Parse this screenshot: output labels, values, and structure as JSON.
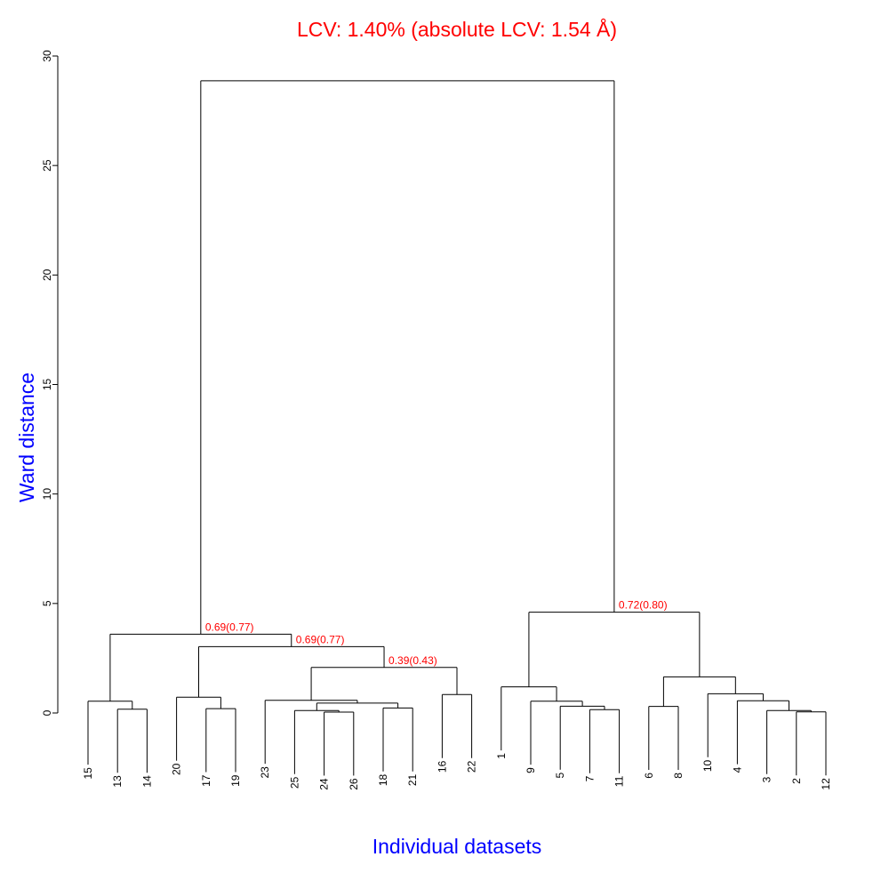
{
  "chart_data": {
    "type": "dendrogram",
    "title": "LCV: 1.40% (absolute LCV: 1.54 Å)",
    "xlabel": "Individual datasets",
    "ylabel": "Ward distance",
    "ylim": [
      0,
      30
    ],
    "yticks": [
      0,
      5,
      10,
      15,
      20,
      25,
      30
    ],
    "hang": 2.9,
    "colors": {
      "title": "#ff0000",
      "axis_labels": "#0000ff",
      "annotations": "#ff0000",
      "lines": "#000000"
    },
    "tree": {
      "h": 28.87,
      "c": [
        {
          "h": 3.6,
          "label": "0.69(0.77)",
          "c": [
            {
              "h": 0.54,
              "c": [
                "15",
                {
                  "h": 0.17,
                  "c": [
                    "13",
                    "14"
                  ]
                }
              ]
            },
            {
              "h": 3.03,
              "label": "0.69(0.77)",
              "c": [
                {
                  "h": 0.72,
                  "c": [
                    "20",
                    {
                      "h": 0.2,
                      "c": [
                        "17",
                        "19"
                      ]
                    }
                  ]
                },
                {
                  "h": 2.08,
                  "label": "0.39(0.43)",
                  "c": [
                    {
                      "h": 0.58,
                      "c": [
                        "23",
                        {
                          "h": 0.45,
                          "c": [
                            {
                              "h": 0.11,
                              "c": [
                                "25",
                                {
                                  "h": 0.04,
                                  "c": [
                                    "24",
                                    "26"
                                  ]
                                }
                              ]
                            },
                            {
                              "h": 0.23,
                              "c": [
                                "18",
                                "21"
                              ]
                            }
                          ]
                        }
                      ]
                    },
                    {
                      "h": 0.84,
                      "c": [
                        "16",
                        "22"
                      ]
                    }
                  ]
                }
              ]
            }
          ]
        },
        {
          "h": 4.6,
          "label": "0.72(0.80)",
          "c": [
            {
              "h": 1.19,
              "c": [
                "1",
                {
                  "h": 0.54,
                  "c": [
                    "9",
                    {
                      "h": 0.31,
                      "c": [
                        "5",
                        {
                          "h": 0.15,
                          "c": [
                            "7",
                            "11"
                          ]
                        }
                      ]
                    }
                  ]
                }
              ]
            },
            {
              "h": 1.65,
              "c": [
                {
                  "h": 0.3,
                  "c": [
                    "6",
                    "8"
                  ]
                },
                {
                  "h": 0.88,
                  "c": [
                    "10",
                    {
                      "h": 0.56,
                      "c": [
                        "4",
                        {
                          "h": 0.11,
                          "c": [
                            "3",
                            {
                              "h": 0.05,
                              "c": [
                                "2",
                                "12"
                              ]
                            }
                          ]
                        }
                      ]
                    }
                  ]
                }
              ]
            }
          ]
        }
      ]
    }
  }
}
